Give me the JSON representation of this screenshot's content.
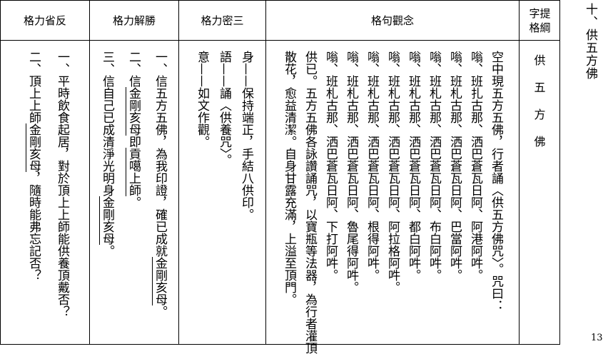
{
  "page_title": "十、供五方佛",
  "page_number": "13",
  "columns": {
    "reflection": {
      "header": "格力省反",
      "lines": [
        [
          {
            "t": "一、平時飲食起居，對於頂上上師能供養頂戴否？"
          }
        ],
        [
          {
            "t": "二、頂上上師"
          },
          {
            "t": "金剛亥母",
            "m": true
          },
          {
            "t": "，隨時能弗忘記否？"
          }
        ]
      ]
    },
    "conviction": {
      "header": "格力解勝",
      "lines": [
        [
          {
            "t": "一、信五方五佛，為我印證，確已成就"
          },
          {
            "t": "金剛亥母",
            "m": true
          },
          {
            "t": "。"
          }
        ],
        [
          {
            "t": "二、信"
          },
          {
            "t": "金剛亥母",
            "m": true
          },
          {
            "t": "即"
          },
          {
            "t": "貢噶上師",
            "m": true
          },
          {
            "t": "。"
          }
        ],
        [
          {
            "t": "三、信自己已成清淨光明身"
          },
          {
            "t": "金剛亥母",
            "m": true
          },
          {
            "t": "。"
          }
        ]
      ]
    },
    "three_secrets": {
      "header": "格力密三",
      "lines": [
        [
          {
            "t": "身——保持端正，手結八供印。"
          }
        ],
        [
          {
            "t": "語——誦〈供養咒〉。"
          }
        ],
        [
          {
            "t": "意——如文作觀。"
          }
        ]
      ]
    },
    "visualization": {
      "header": "格句觀念",
      "lines": [
        [
          {
            "t": "空中現五方五佛，行者誦〈供五方佛咒〉。咒曰："
          }
        ],
        [
          {
            "t": "嗡、班扎古那、洒巴蒼瓦日阿、阿港阿吽。"
          }
        ],
        [
          {
            "t": "嗡、班札古那、洒巴蒼瓦日阿、巴當阿吽。"
          }
        ],
        [
          {
            "t": "嗡、班札古那、洒巴蒼瓦日阿、布白阿吽。"
          }
        ],
        [
          {
            "t": "嗡、班札古那、洒巴蒼瓦日阿、都白阿吽。"
          }
        ],
        [
          {
            "t": "嗡、班札古那、洒巴蒼瓦日阿、阿拉格阿吽。"
          }
        ],
        [
          {
            "t": "嗡、班札古那、洒巴蒼瓦日阿、根得阿吽。"
          }
        ],
        [
          {
            "t": "嗡、班札古那、洒巴蒼瓦日阿、魯尾得阿吽。"
          }
        ],
        [
          {
            "t": "嗡、班札古那、洒巴蒼瓦日阿、下打阿吽。"
          }
        ],
        [
          {
            "t": "供已。五方五佛各詠讚誦咒，以寶瓶等法器，為行者灌頂"
          }
        ],
        [
          {
            "t": "散花，愈益清潔。自身甘露充滿，上溢至頂門。"
          }
        ]
      ]
    },
    "keyword": {
      "header_line1": "字提",
      "header_line2": "格綱",
      "chars": [
        "供",
        "五",
        "方",
        "佛"
      ]
    }
  }
}
